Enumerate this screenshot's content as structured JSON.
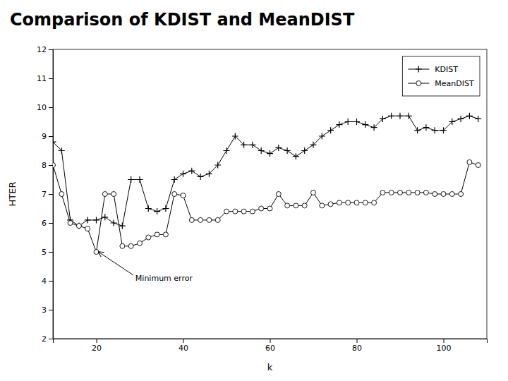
{
  "chart_data": {
    "type": "line",
    "title": "Comparison of KDIST and MeanDIST",
    "x_label": "k",
    "y_label": "HTER",
    "x": [
      10,
      12,
      14,
      16,
      18,
      20,
      22,
      24,
      26,
      28,
      30,
      32,
      34,
      36,
      38,
      40,
      42,
      44,
      46,
      48,
      50,
      52,
      54,
      56,
      58,
      60,
      62,
      64,
      66,
      68,
      70,
      72,
      74,
      76,
      78,
      80,
      82,
      84,
      86,
      88,
      90,
      92,
      94,
      96,
      98,
      100,
      102,
      104,
      106,
      108
    ],
    "series": [
      {
        "name": "KDIST",
        "color": "#000000",
        "marker": "plus",
        "values": [
          8.8,
          8.5,
          6.1,
          5.9,
          6.1,
          6.1,
          6.2,
          6.0,
          5.9,
          7.5,
          7.5,
          6.5,
          6.4,
          6.5,
          7.5,
          7.7,
          7.8,
          7.6,
          7.7,
          8.0,
          8.5,
          9.0,
          8.7,
          8.7,
          8.5,
          8.4,
          8.6,
          8.5,
          8.3,
          8.5,
          8.7,
          9.0,
          9.2,
          9.4,
          9.5,
          9.5,
          9.4,
          9.3,
          9.6,
          9.7,
          9.7,
          9.7,
          9.2,
          9.3,
          9.2,
          9.2,
          9.5,
          9.6,
          9.7,
          9.6
        ]
      },
      {
        "name": "MeanDIST",
        "color": "#000000",
        "marker": "circle",
        "values": [
          8.0,
          7.0,
          6.0,
          5.9,
          5.8,
          5.0,
          7.0,
          7.0,
          5.2,
          5.2,
          5.3,
          5.5,
          5.6,
          5.6,
          7.0,
          6.95,
          6.1,
          6.1,
          6.1,
          6.1,
          6.4,
          6.4,
          6.4,
          6.4,
          6.5,
          6.5,
          7.0,
          6.6,
          6.6,
          6.6,
          7.05,
          6.6,
          6.65,
          6.7,
          6.7,
          6.7,
          6.7,
          6.7,
          7.05,
          7.05,
          7.05,
          7.05,
          7.05,
          7.05,
          7.0,
          7.0,
          7.0,
          7.0,
          8.1,
          8.0
        ]
      }
    ],
    "xlim": [
      10,
      110
    ],
    "ylim": [
      2,
      12
    ],
    "xticks": [
      20,
      40,
      60,
      80,
      100
    ],
    "yticks": [
      2,
      3,
      4,
      5,
      6,
      7,
      8,
      9,
      10,
      11,
      12
    ],
    "grid": false,
    "legend": "upper right",
    "annotations": [
      {
        "text": "Minimum error",
        "x": 20.5,
        "y": 5.0,
        "text_x": 29,
        "text_y": 4.1
      }
    ]
  }
}
